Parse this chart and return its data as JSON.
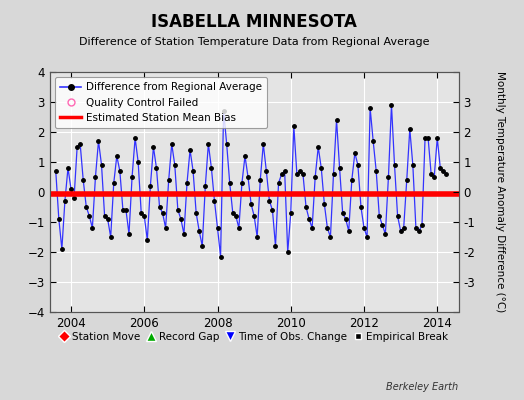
{
  "title": "ISABELLA MINNESOTA",
  "subtitle": "Difference of Station Temperature Data from Regional Average",
  "ylabel": "Monthly Temperature Anomaly Difference (°C)",
  "xlabel_bottom": "Berkeley Earth",
  "bias_value": -0.05,
  "ylim": [
    -4,
    4
  ],
  "xlim_start": 2003.42,
  "xlim_end": 2014.58,
  "xticks": [
    2004,
    2006,
    2008,
    2010,
    2012,
    2014
  ],
  "yticks": [
    -4,
    -3,
    -2,
    -1,
    0,
    1,
    2,
    3,
    4
  ],
  "line_color": "#3333ff",
  "bias_color": "#ff0000",
  "dot_color": "#000000",
  "bg_color": "#d8d8d8",
  "plot_bg_color": "#e4e4e4",
  "grid_color": "#ffffff",
  "times": [
    2003.583,
    2003.667,
    2003.75,
    2003.833,
    2003.917,
    2004.0,
    2004.083,
    2004.167,
    2004.25,
    2004.333,
    2004.417,
    2004.5,
    2004.583,
    2004.667,
    2004.75,
    2004.833,
    2004.917,
    2005.0,
    2005.083,
    2005.167,
    2005.25,
    2005.333,
    2005.417,
    2005.5,
    2005.583,
    2005.667,
    2005.75,
    2005.833,
    2005.917,
    2006.0,
    2006.083,
    2006.167,
    2006.25,
    2006.333,
    2006.417,
    2006.5,
    2006.583,
    2006.667,
    2006.75,
    2006.833,
    2006.917,
    2007.0,
    2007.083,
    2007.167,
    2007.25,
    2007.333,
    2007.417,
    2007.5,
    2007.583,
    2007.667,
    2007.75,
    2007.833,
    2007.917,
    2008.0,
    2008.083,
    2008.167,
    2008.25,
    2008.333,
    2008.417,
    2008.5,
    2008.583,
    2008.667,
    2008.75,
    2008.833,
    2008.917,
    2009.0,
    2009.083,
    2009.167,
    2009.25,
    2009.333,
    2009.417,
    2009.5,
    2009.583,
    2009.667,
    2009.75,
    2009.833,
    2009.917,
    2010.0,
    2010.083,
    2010.167,
    2010.25,
    2010.333,
    2010.417,
    2010.5,
    2010.583,
    2010.667,
    2010.75,
    2010.833,
    2010.917,
    2011.0,
    2011.083,
    2011.167,
    2011.25,
    2011.333,
    2011.417,
    2011.5,
    2011.583,
    2011.667,
    2011.75,
    2011.833,
    2011.917,
    2012.0,
    2012.083,
    2012.167,
    2012.25,
    2012.333,
    2012.417,
    2012.5,
    2012.583,
    2012.667,
    2012.75,
    2012.833,
    2012.917,
    2013.0,
    2013.083,
    2013.167,
    2013.25,
    2013.333,
    2013.417,
    2013.5,
    2013.583,
    2013.667,
    2013.75,
    2013.833,
    2013.917,
    2014.0,
    2014.083,
    2014.167,
    2014.25
  ],
  "values": [
    0.7,
    -0.9,
    -1.9,
    -0.3,
    0.8,
    0.1,
    -0.2,
    1.5,
    1.6,
    0.4,
    -0.5,
    -0.8,
    -1.2,
    0.5,
    1.7,
    0.9,
    -0.8,
    -0.9,
    -1.5,
    0.3,
    1.2,
    0.7,
    -0.6,
    -0.6,
    -1.4,
    0.5,
    1.8,
    1.0,
    -0.7,
    -0.8,
    -1.6,
    0.2,
    1.5,
    0.8,
    -0.5,
    -0.7,
    -1.2,
    0.4,
    1.6,
    0.9,
    -0.6,
    -0.9,
    -1.4,
    0.3,
    1.4,
    0.7,
    -0.7,
    -1.3,
    -1.8,
    0.2,
    1.6,
    0.8,
    -0.3,
    -1.2,
    -2.15,
    2.7,
    1.6,
    0.3,
    -0.7,
    -0.8,
    -1.2,
    0.3,
    1.2,
    0.5,
    -0.4,
    -0.8,
    -1.5,
    0.4,
    1.6,
    0.7,
    -0.3,
    -0.6,
    -1.8,
    0.3,
    0.6,
    0.7,
    -2.0,
    -0.7,
    2.2,
    0.6,
    0.7,
    0.6,
    -0.5,
    -0.9,
    -1.2,
    0.5,
    1.5,
    0.8,
    -0.4,
    -1.2,
    -1.5,
    0.6,
    2.4,
    0.8,
    -0.7,
    -0.9,
    -1.3,
    0.4,
    1.3,
    0.9,
    -0.5,
    -1.2,
    -1.5,
    2.8,
    1.7,
    0.7,
    -0.8,
    -1.1,
    -1.4,
    0.5,
    2.9,
    0.9,
    -0.8,
    -1.3,
    -1.2,
    0.4,
    2.1,
    0.9,
    -1.2,
    -1.3,
    -1.1,
    1.8,
    1.8,
    0.6,
    0.5,
    1.8,
    0.8,
    0.7,
    0.6
  ]
}
